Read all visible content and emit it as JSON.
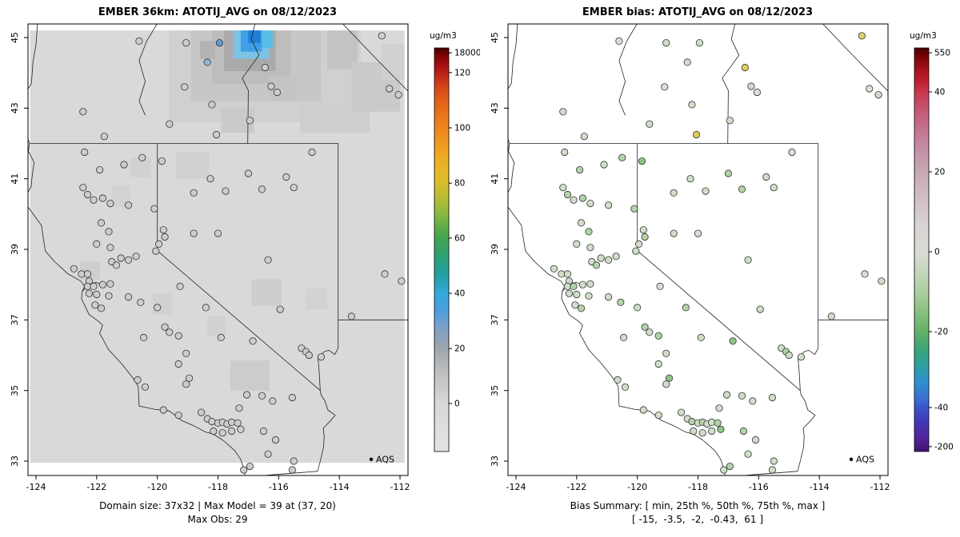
{
  "chart_data": {
    "type": "map",
    "description": "Two-panel model vs bias surface map with AQS station observations",
    "panels": [
      {
        "id": "model",
        "title": "EMBER 36km: ATOTIJ_AVG on 08/12/2023",
        "caption_line1": "Domain size: 37x32 | Max Model = 39 at (37, 20)",
        "caption_line2": "Max Obs: 29",
        "has_raster": true,
        "colorbar": {
          "units": "ug/m3",
          "ticks": [
            [
              "18000",
              0.012
            ],
            [
              "120",
              0.061
            ],
            [
              "100",
              0.198
            ],
            [
              "80",
              0.335
            ],
            [
              "60",
              0.471
            ],
            [
              "40",
              0.608
            ],
            [
              "20",
              0.745
            ],
            [
              "0",
              0.881
            ]
          ],
          "gradient": [
            [
              0,
              "#4a0000"
            ],
            [
              0.02,
              "#7f0303"
            ],
            [
              0.045,
              "#a81116"
            ],
            [
              0.07,
              "#c22a1a"
            ],
            [
              0.1,
              "#d64a18"
            ],
            [
              0.14,
              "#e4661a"
            ],
            [
              0.185,
              "#ec7f1e"
            ],
            [
              0.23,
              "#f0971f"
            ],
            [
              0.275,
              "#ecad24"
            ],
            [
              0.31,
              "#e4b928"
            ],
            [
              0.335,
              "#d9bc2b"
            ],
            [
              0.37,
              "#b9bd33"
            ],
            [
              0.41,
              "#8bba40"
            ],
            [
              0.45,
              "#57ab4a"
            ],
            [
              0.471,
              "#43a450"
            ],
            [
              0.51,
              "#30a06e"
            ],
            [
              0.55,
              "#259f96"
            ],
            [
              0.58,
              "#2aa2b8"
            ],
            [
              0.608,
              "#35a9d9"
            ],
            [
              0.65,
              "#4a9ee0"
            ],
            [
              0.69,
              "#79a0c8"
            ],
            [
              0.745,
              "#9fa6ae"
            ],
            [
              0.8,
              "#bdbebf"
            ],
            [
              0.881,
              "#d8d8d8"
            ],
            [
              1,
              "#e3e3e3"
            ]
          ]
        }
      },
      {
        "id": "bias",
        "title": "EMBER bias: ATOTIJ_AVG on 08/12/2023",
        "caption_line1": "Bias Summary: [ min, 25th %, 50th %, 75th %, max ]",
        "caption_line2": "[ -15,  -3.5,  -2,  -0.43,  61 ]",
        "has_raster": false,
        "colorbar": {
          "units": "ug/m3",
          "ticks": [
            [
              "550",
              0.012
            ],
            [
              "40",
              0.109
            ],
            [
              "20",
              0.307
            ],
            [
              "0",
              0.505
            ],
            [
              "-20",
              0.703
            ],
            [
              "-40",
              0.891
            ],
            [
              "-200",
              0.988
            ]
          ],
          "gradient": [
            [
              0,
              "#4a0000"
            ],
            [
              0.025,
              "#7f0505"
            ],
            [
              0.055,
              "#a8131a"
            ],
            [
              0.085,
              "#c02031"
            ],
            [
              0.109,
              "#c8374e"
            ],
            [
              0.15,
              "#c65570"
            ],
            [
              0.2,
              "#c4738f"
            ],
            [
              0.25,
              "#c48fa6"
            ],
            [
              0.307,
              "#c8a8b4"
            ],
            [
              0.38,
              "#d2c2c6"
            ],
            [
              0.44,
              "#d9d2d2"
            ],
            [
              0.505,
              "#d9dcd6"
            ],
            [
              0.56,
              "#c4d6ba"
            ],
            [
              0.62,
              "#a3cb96"
            ],
            [
              0.66,
              "#84bf7d"
            ],
            [
              0.703,
              "#62b266"
            ],
            [
              0.75,
              "#3aa47c"
            ],
            [
              0.79,
              "#2d9fa4"
            ],
            [
              0.83,
              "#2f8fd0"
            ],
            [
              0.87,
              "#3a6ed2"
            ],
            [
              0.891,
              "#3a55c8"
            ],
            [
              0.93,
              "#4436b4"
            ],
            [
              0.965,
              "#55249c"
            ],
            [
              1,
              "#3d1670"
            ]
          ]
        }
      }
    ],
    "axis": {
      "x_ticks": [
        "-124",
        "-122",
        "-120",
        "-118",
        "-116",
        "-114",
        "-112"
      ],
      "x_values": [
        -124,
        -122,
        -120,
        -118,
        -116,
        -114,
        -112
      ],
      "y_ticks": [
        "33",
        "35",
        "37",
        "39",
        "41",
        "43",
        "45"
      ],
      "y_values": [
        33,
        35,
        37,
        39,
        41,
        43,
        45
      ]
    },
    "legend": {
      "label": "AQS",
      "lon": -112.95,
      "lat": 33.05
    },
    "raster": {
      "extent": [
        -124.2,
        32.95,
        -111.85,
        45.2
      ],
      "base_fill": "#d9d9d9",
      "cells": [
        [
          -119.6,
          42.6,
          -113.3,
          45.2,
          "#d0d0d0"
        ],
        [
          -118.9,
          43.2,
          -114.6,
          45.2,
          "#c7c7c7"
        ],
        [
          -118.2,
          43.7,
          -115.6,
          45.2,
          "#bdbdbd"
        ],
        [
          -114.4,
          44.1,
          -113.4,
          45.2,
          "#c3c3c3"
        ],
        [
          -117.8,
          44.05,
          -116.1,
          45.2,
          "#aaaaaa"
        ],
        [
          -118.6,
          44.4,
          -118.1,
          44.9,
          "#b3b3b3"
        ],
        [
          -116.3,
          43.2,
          -115.4,
          43.9,
          "#c4c4c4"
        ],
        [
          -117.9,
          42.3,
          -116.8,
          43.0,
          "#cacaca"
        ],
        [
          -115.3,
          42.3,
          -113.0,
          43.1,
          "#cecece"
        ],
        [
          -113.6,
          42.9,
          -112.0,
          44.3,
          "#cacaca"
        ],
        [
          -112.6,
          43.8,
          -111.85,
          44.8,
          "#d0d0d0"
        ],
        [
          -119.4,
          41.0,
          -118.3,
          41.75,
          "#d0d0d0"
        ],
        [
          -120.9,
          41.05,
          -120.2,
          41.6,
          "#d1d1d1"
        ],
        [
          -121.5,
          40.2,
          -120.9,
          40.8,
          "#d2d2d2"
        ],
        [
          -116.9,
          37.4,
          -115.9,
          38.15,
          "#cdcdcd"
        ],
        [
          -120.15,
          37.15,
          -119.5,
          37.75,
          "#d1d1d1"
        ],
        [
          -122.55,
          38.15,
          -121.9,
          38.65,
          "#cecece"
        ],
        [
          -117.6,
          35.0,
          -116.3,
          35.85,
          "#cccccc"
        ],
        [
          -118.35,
          36.55,
          -117.75,
          37.1,
          "#d1d1d1"
        ],
        [
          -115.1,
          37.3,
          -114.4,
          37.9,
          "#d2d2d2"
        ],
        [
          -117.5,
          44.4,
          -116.3,
          45.2,
          "#7ec2e4"
        ],
        [
          -117.25,
          44.6,
          -116.55,
          45.2,
          "#3fa0e8"
        ],
        [
          -117.0,
          44.85,
          -116.6,
          45.2,
          "#1d7fd6"
        ],
        [
          -116.55,
          44.7,
          -116.2,
          45.2,
          "#59bfe8"
        ]
      ]
    },
    "stations": {
      "default_model_fill": "#cdcdcd",
      "default_bias_fill": "#d9ded6",
      "points": [
        [
          -120.6,
          44.9,
          null,
          null
        ],
        [
          -119.05,
          44.85,
          "#cfdec8",
          null
        ],
        [
          -117.95,
          44.85,
          "#cfdec8",
          "#5b9bd5"
        ],
        [
          -118.35,
          44.3,
          "#cfdec8",
          "#97b6cd"
        ],
        [
          -116.45,
          44.15,
          "#e2cd55",
          null
        ],
        [
          -112.6,
          45.05,
          "#ddcf6e",
          null
        ],
        [
          -119.1,
          43.6,
          null,
          null
        ],
        [
          -118.2,
          43.1,
          "#cfdec8",
          null
        ],
        [
          -116.25,
          43.62,
          "#cfdec8",
          null
        ],
        [
          -116.05,
          43.45,
          null,
          null
        ],
        [
          -112.35,
          43.55,
          null,
          null
        ],
        [
          -112.05,
          43.38,
          "#cfdec8",
          null
        ],
        [
          -122.45,
          42.9,
          "#cfdec8",
          null
        ],
        [
          -121.75,
          42.2,
          "#cfdec8",
          null
        ],
        [
          -119.6,
          42.55,
          "#cfdec8",
          null
        ],
        [
          -118.05,
          42.25,
          "#e2cd55",
          null
        ],
        [
          -116.95,
          42.65,
          "#cfdec8",
          null
        ],
        [
          -122.4,
          41.75,
          "#cfdec8",
          null
        ],
        [
          -121.9,
          41.25,
          "#b2d3a8",
          null
        ],
        [
          -121.1,
          41.4,
          "#cfdec8",
          null
        ],
        [
          -120.5,
          41.6,
          "#b2d3a8",
          null
        ],
        [
          -119.85,
          41.5,
          "#8fc487",
          null
        ],
        [
          -118.25,
          41.0,
          "#cfdec8",
          null
        ],
        [
          -117.0,
          41.15,
          "#b2d3a8",
          null
        ],
        [
          -115.75,
          41.05,
          "#cfdec8",
          null
        ],
        [
          -114.9,
          41.75,
          null,
          null
        ],
        [
          -122.45,
          40.75,
          "#cfdec8",
          null
        ],
        [
          -122.3,
          40.55,
          "#b2d3a8",
          null
        ],
        [
          -122.1,
          40.4,
          "#cfdec8",
          null
        ],
        [
          -121.8,
          40.45,
          "#b2d3a8",
          null
        ],
        [
          -121.55,
          40.3,
          "#cfdec8",
          null
        ],
        [
          -120.95,
          40.25,
          "#cfdec8",
          null
        ],
        [
          -120.1,
          40.15,
          "#b2d3a8",
          null
        ],
        [
          -118.8,
          40.6,
          "#cfdec8",
          null
        ],
        [
          -117.75,
          40.65,
          "#cfdec8",
          null
        ],
        [
          -116.55,
          40.7,
          "#b2d3a8",
          null
        ],
        [
          -115.5,
          40.75,
          "#cfdec8",
          null
        ],
        [
          -121.85,
          39.75,
          "#cfdec8",
          null
        ],
        [
          -121.6,
          39.5,
          "#b2d3a8",
          null
        ],
        [
          -122.0,
          39.15,
          "#cfdec8",
          null
        ],
        [
          -121.55,
          39.05,
          "#cfdec8",
          null
        ],
        [
          -119.8,
          39.55,
          "#cfdec8",
          null
        ],
        [
          -119.75,
          39.35,
          "#b2d3a8",
          null
        ],
        [
          -119.95,
          39.15,
          "#cfdec8",
          null
        ],
        [
          -120.05,
          38.95,
          "#cfdec8",
          null
        ],
        [
          -118.8,
          39.45,
          "#cfdec8",
          null
        ],
        [
          -118.0,
          39.45,
          null,
          null
        ],
        [
          -121.5,
          38.65,
          "#cfdec8",
          null
        ],
        [
          -121.35,
          38.55,
          "#b2d3a8",
          null
        ],
        [
          -121.2,
          38.75,
          "#cfdec8",
          null
        ],
        [
          -120.95,
          38.7,
          "#cfdec8",
          null
        ],
        [
          -120.7,
          38.8,
          "#cfdec8",
          null
        ],
        [
          -116.35,
          38.7,
          "#cfdec8",
          null
        ],
        [
          -122.75,
          38.45,
          "#cfdec8",
          null
        ],
        [
          -122.5,
          38.3,
          "#cfdec8",
          null
        ],
        [
          -122.3,
          38.3,
          "#cfdec8",
          null
        ],
        [
          -122.25,
          38.1,
          "#cfdec8",
          null
        ],
        [
          -122.3,
          37.95,
          "#cfdec8",
          null
        ],
        [
          -122.1,
          37.95,
          "#b2d3a8",
          null
        ],
        [
          -122.25,
          37.75,
          "#cfdec8",
          null
        ],
        [
          -122.0,
          37.72,
          "#cfdec8",
          null
        ],
        [
          -121.8,
          38.0,
          "#cfdec8",
          null
        ],
        [
          -121.55,
          38.02,
          "#cfdec8",
          null
        ],
        [
          -122.05,
          37.42,
          "#cfdec8",
          null
        ],
        [
          -121.85,
          37.33,
          "#b2d3a8",
          null
        ],
        [
          -121.6,
          37.68,
          "#cfdec8",
          null
        ],
        [
          -120.95,
          37.65,
          "#cfdec8",
          null
        ],
        [
          -120.55,
          37.5,
          "#b2d3a8",
          null
        ],
        [
          -120.0,
          37.35,
          "#cfdec8",
          null
        ],
        [
          -119.75,
          36.8,
          "#b2d3a8",
          null
        ],
        [
          -119.6,
          36.65,
          "#cfdec8",
          null
        ],
        [
          -119.3,
          36.55,
          "#b2d3a8",
          null
        ],
        [
          -119.05,
          36.05,
          "#cfdec8",
          null
        ],
        [
          -119.3,
          35.75,
          "#cfdec8",
          null
        ],
        [
          -118.95,
          35.35,
          "#8fc487",
          null
        ],
        [
          -119.05,
          35.18,
          "#cfdec8",
          null
        ],
        [
          -120.45,
          36.5,
          "#cfdec8",
          null
        ],
        [
          -119.25,
          37.95,
          null,
          null
        ],
        [
          -118.4,
          37.35,
          "#b2d3a8",
          null
        ],
        [
          -117.9,
          36.5,
          "#cfdec8",
          null
        ],
        [
          -116.85,
          36.4,
          "#8fc487",
          null
        ],
        [
          -115.95,
          37.3,
          "#cfdec8",
          null
        ],
        [
          -115.25,
          36.2,
          "#cfdec8",
          null
        ],
        [
          -115.1,
          36.1,
          "#b2d3a8",
          null
        ],
        [
          -115.0,
          36.0,
          "#cfdec8",
          null
        ],
        [
          -114.6,
          35.95,
          "#cfdec8",
          null
        ],
        [
          -113.6,
          37.1,
          "#cfdec8",
          null
        ],
        [
          -112.5,
          38.3,
          null,
          null
        ],
        [
          -111.95,
          38.1,
          "#cfdec8",
          null
        ],
        [
          -120.65,
          35.3,
          "#cfdec8",
          null
        ],
        [
          -120.4,
          35.1,
          "#cfdec8",
          null
        ],
        [
          -119.8,
          34.45,
          "#cfdec8",
          null
        ],
        [
          -119.3,
          34.3,
          "#cfdec8",
          null
        ],
        [
          -118.55,
          34.38,
          "#cfdec8",
          null
        ],
        [
          -118.35,
          34.2,
          "#cfdec8",
          null
        ],
        [
          -118.2,
          34.12,
          "#b2d3a8",
          null
        ],
        [
          -118.0,
          34.08,
          "#cfdec8",
          null
        ],
        [
          -117.85,
          34.1,
          "#b2d3a8",
          null
        ],
        [
          -117.7,
          34.05,
          "#cfdec8",
          null
        ],
        [
          -117.55,
          34.1,
          "#cfdec8",
          null
        ],
        [
          -117.35,
          34.08,
          "#b2d3a8",
          null
        ],
        [
          -117.25,
          33.9,
          "#8fc487",
          null
        ],
        [
          -117.55,
          33.85,
          "#cfdec8",
          null
        ],
        [
          -117.85,
          33.8,
          "#cfdec8",
          null
        ],
        [
          -118.15,
          33.85,
          "#cfdec8",
          null
        ],
        [
          -117.3,
          34.5,
          "#cfdec8",
          null
        ],
        [
          -117.05,
          34.88,
          "#cfdec8",
          null
        ],
        [
          -116.55,
          34.85,
          "#cfdec8",
          null
        ],
        [
          -116.2,
          34.7,
          "#cfdec8",
          null
        ],
        [
          -115.55,
          34.8,
          "#cfdec8",
          null
        ],
        [
          -116.5,
          33.85,
          "#b2d3a8",
          null
        ],
        [
          -116.1,
          33.6,
          "#cfdec8",
          null
        ],
        [
          -117.15,
          32.75,
          "#cfdec8",
          null
        ],
        [
          -116.95,
          32.85,
          "#b2d3a8",
          null
        ],
        [
          -115.5,
          33.0,
          "#cfdec8",
          null
        ],
        [
          -115.55,
          32.75,
          "#cfdec8",
          null
        ],
        [
          -116.35,
          33.2,
          "#cfdec8",
          null
        ]
      ]
    }
  }
}
